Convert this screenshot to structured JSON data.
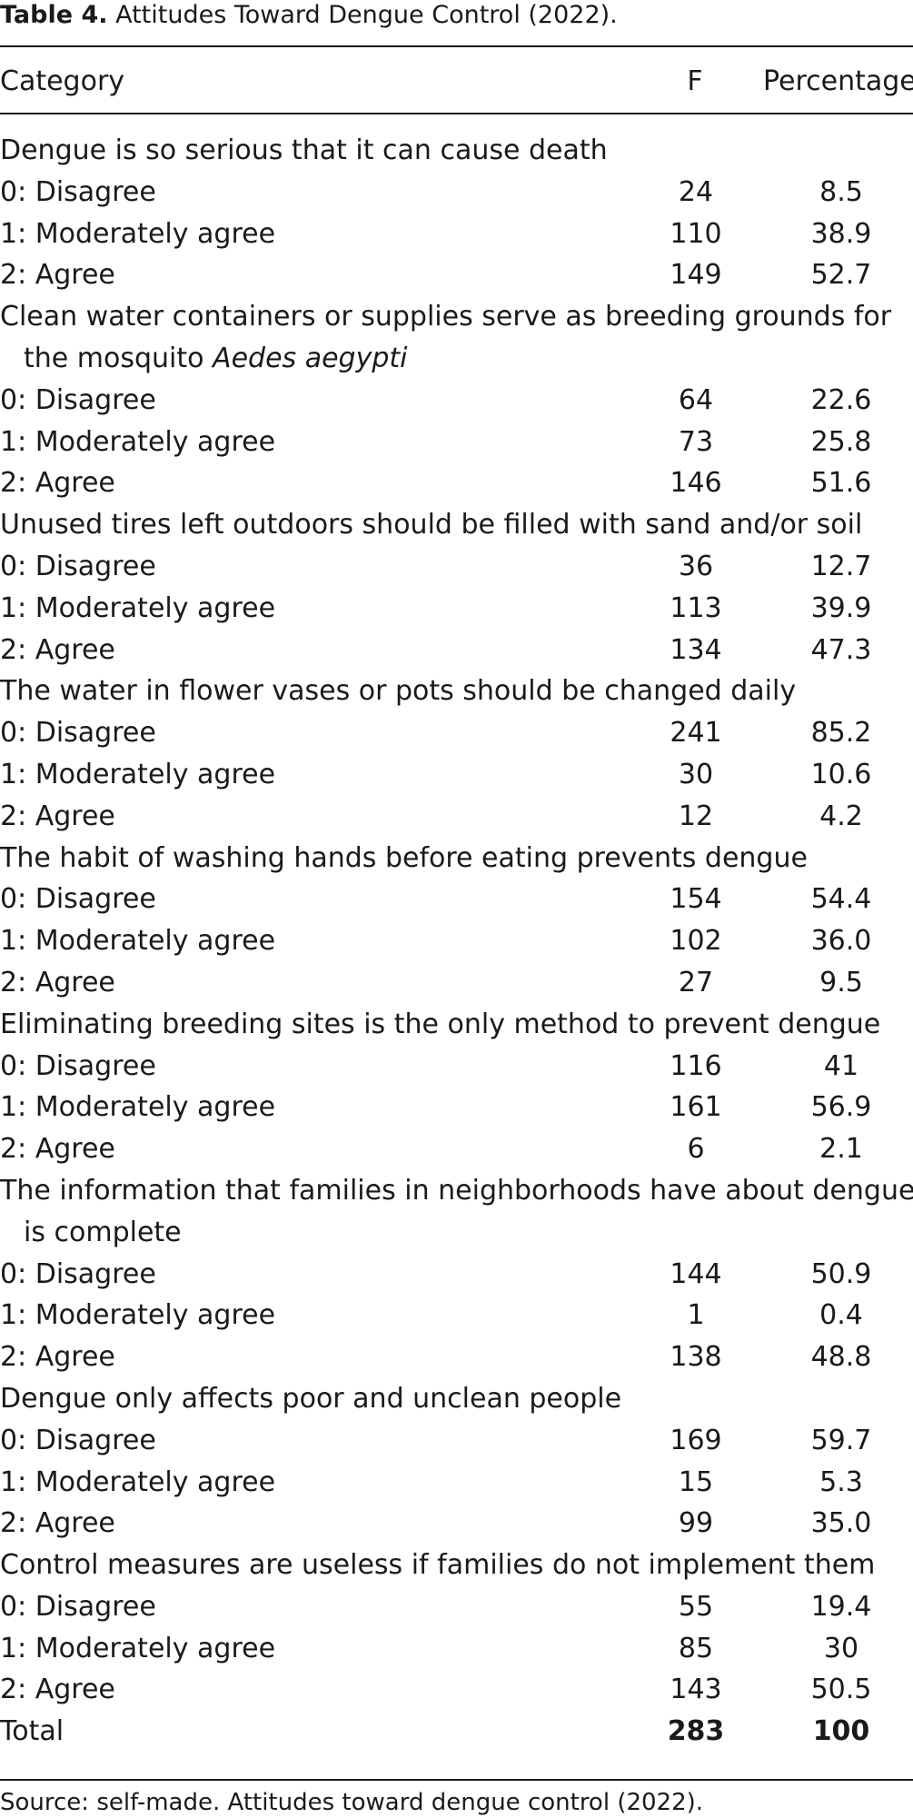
{
  "caption": {
    "label": "Table 4.",
    "title": "Attitudes Toward Dengue Control (2022)."
  },
  "headers": {
    "category": "Category",
    "f": "F",
    "percentage": "Percentage"
  },
  "groups": [
    {
      "question": "Dengue is so serious that it can cause death",
      "rows": [
        {
          "label": "0: Disagree",
          "f": "24",
          "pct": "8.5"
        },
        {
          "label": "1: Moderately agree",
          "f": "110",
          "pct": "38.9"
        },
        {
          "label": "2: Agree",
          "f": "149",
          "pct": "52.7"
        }
      ]
    },
    {
      "question": "Clean water containers or supplies serve as breeding grounds for the mosquito",
      "question_italic": "Aedes aegypti",
      "rows": [
        {
          "label": "0: Disagree",
          "f": "64",
          "pct": "22.6"
        },
        {
          "label": "1: Moderately agree",
          "f": "73",
          "pct": "25.8"
        },
        {
          "label": "2: Agree",
          "f": "146",
          "pct": "51.6"
        }
      ]
    },
    {
      "question": "Unused tires left outdoors should be filled with sand and/or soil",
      "rows": [
        {
          "label": "0: Disagree",
          "f": "36",
          "pct": "12.7"
        },
        {
          "label": "1: Moderately agree",
          "f": "113",
          "pct": "39.9"
        },
        {
          "label": "2: Agree",
          "f": "134",
          "pct": "47.3"
        }
      ]
    },
    {
      "question": "The water in flower vases or pots should be changed daily",
      "rows": [
        {
          "label": "0: Disagree",
          "f": "241",
          "pct": "85.2"
        },
        {
          "label": "1: Moderately agree",
          "f": "30",
          "pct": "10.6"
        },
        {
          "label": "2: Agree",
          "f": "12",
          "pct": "4.2"
        }
      ]
    },
    {
      "question": "The habit of washing hands before eating prevents dengue",
      "rows": [
        {
          "label": "0: Disagree",
          "f": "154",
          "pct": "54.4"
        },
        {
          "label": "1: Moderately agree",
          "f": "102",
          "pct": "36.0"
        },
        {
          "label": "2: Agree",
          "f": "27",
          "pct": "9.5"
        }
      ]
    },
    {
      "question": "Eliminating breeding sites is the only method to prevent dengue",
      "rows": [
        {
          "label": "0: Disagree",
          "f": "116",
          "pct": "41"
        },
        {
          "label": "1: Moderately agree",
          "f": "161",
          "pct": "56.9"
        },
        {
          "label": "2: Agree",
          "f": "6",
          "pct": "2.1"
        }
      ]
    },
    {
      "question": "The information that families in neighborhoods have about dengue is complete",
      "rows": [
        {
          "label": "0: Disagree",
          "f": "144",
          "pct": "50.9"
        },
        {
          "label": "1: Moderately agree",
          "f": "1",
          "pct": "0.4"
        },
        {
          "label": "2: Agree",
          "f": "138",
          "pct": "48.8"
        }
      ]
    },
    {
      "question": "Dengue only affects poor and unclean people",
      "rows": [
        {
          "label": "0: Disagree",
          "f": "169",
          "pct": "59.7"
        },
        {
          "label": "1: Moderately agree",
          "f": "15",
          "pct": "5.3"
        },
        {
          "label": "2: Agree",
          "f": "99",
          "pct": "35.0"
        }
      ]
    },
    {
      "question": "Control measures are useless if families do not implement them",
      "rows": [
        {
          "label": "0: Disagree",
          "f": "55",
          "pct": "19.4"
        },
        {
          "label": "1: Moderately agree",
          "f": "85",
          "pct": "30"
        },
        {
          "label": "2: Agree",
          "f": "143",
          "pct": "50.5"
        }
      ]
    }
  ],
  "total": {
    "label": "Total",
    "f": "283",
    "pct": "100"
  },
  "source": "Source: self-made. Attitudes toward dengue control (2022)."
}
